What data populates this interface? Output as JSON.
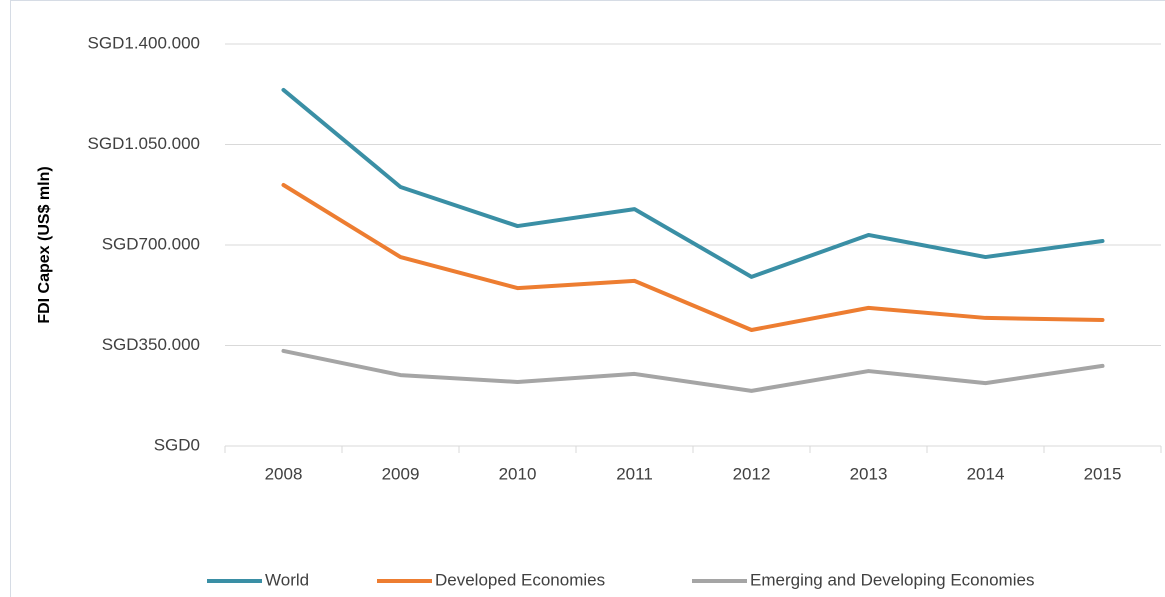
{
  "chart_data": {
    "type": "line",
    "y_label": "FDI Capex (US$ mln)",
    "categories": [
      "2008",
      "2009",
      "2010",
      "2011",
      "2012",
      "2013",
      "2014",
      "2015"
    ],
    "series": [
      {
        "name": "World",
        "color": "#3a8fa5",
        "values": [
          1240000,
          902000,
          766000,
          825000,
          589000,
          735000,
          658000,
          714000
        ]
      },
      {
        "name": "Developed Economies",
        "color": "#ed7d31",
        "values": [
          909000,
          658000,
          550000,
          575000,
          404000,
          481000,
          446000,
          439000
        ]
      },
      {
        "name": "Emerging and Developing Economies",
        "color": "#a5a5a5",
        "values": [
          331000,
          247000,
          223000,
          251000,
          192000,
          261000,
          219000,
          279000
        ]
      }
    ],
    "ylim": [
      0,
      1400000
    ],
    "yticks": [
      {
        "value": 0,
        "label": "SGD0"
      },
      {
        "value": 350000,
        "label": "SGD350.000"
      },
      {
        "value": 700000,
        "label": "SGD700.000"
      },
      {
        "value": 1050000,
        "label": "SGD1.050.000"
      },
      {
        "value": 1400000,
        "label": "SGD1.400.000"
      }
    ],
    "grid": true,
    "legend": "bottom"
  }
}
